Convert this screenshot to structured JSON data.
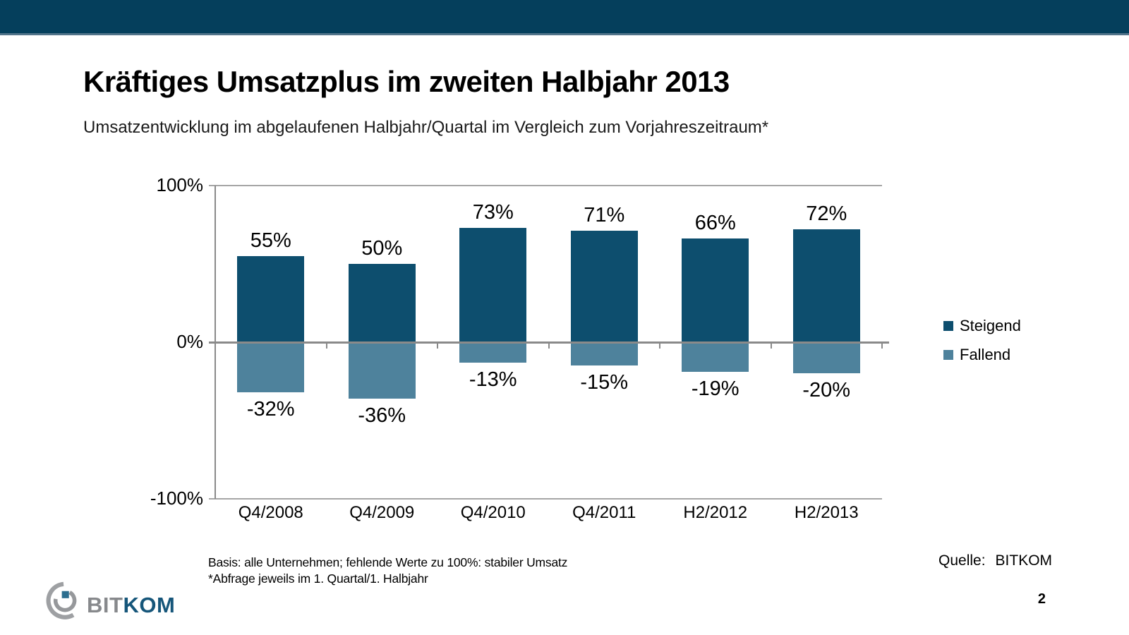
{
  "slide": {
    "title": "Kräftiges Umsatzplus im zweiten Halbjahr 2013",
    "subtitle": "Umsatzentwicklung im abgelaufenen Halbjahr/Quartal im Vergleich zum Vorjahreszeitraum*",
    "footnote_line1": "Basis: alle Unternehmen; fehlende Werte zu 100%: stabiler Umsatz",
    "footnote_line2": "*Abfrage jeweils im 1. Quartal/1. Halbjahr",
    "source_label": "Quelle:",
    "source_value": "BITKOM",
    "page_number": "2",
    "logo_bit": "BIT",
    "logo_kom": "KOM"
  },
  "theme": {
    "banner": "#053F5C",
    "banner_line": "#52748A",
    "axis": "#8A8A8A",
    "grid": "#A6A6A6",
    "bar_up": "#0D4E6E",
    "bar_down": "#4E829C",
    "logo_arc_outer": "#9EA0A3",
    "logo_arc_inner": "#96989B",
    "logo_square": "#2C6E8F",
    "logo_text_gray": "#87898C",
    "logo_text_blue": "#16567A"
  },
  "chart_data": {
    "type": "bar",
    "categories": [
      "Q4/2008",
      "Q4/2009",
      "Q4/2010",
      "Q4/2011",
      "H2/2012",
      "H2/2013"
    ],
    "series": [
      {
        "name": "Steigend",
        "color": "#0D4E6E",
        "values": [
          55,
          50,
          73,
          71,
          66,
          72
        ]
      },
      {
        "name": "Fallend",
        "color": "#4E829C",
        "values": [
          -32,
          -36,
          -13,
          -15,
          -19,
          -20
        ]
      }
    ],
    "title": "",
    "xlabel": "",
    "ylabel": "",
    "ylim": [
      -100,
      100
    ],
    "yticks": [
      {
        "label": "100%",
        "value": 100
      },
      {
        "label": "0%",
        "value": 0
      },
      {
        "label": "-100%",
        "value": -100
      }
    ],
    "grid": "lines at 100%, 0%, -100% only",
    "legend_position": "right",
    "data_label_format": "value + %"
  }
}
